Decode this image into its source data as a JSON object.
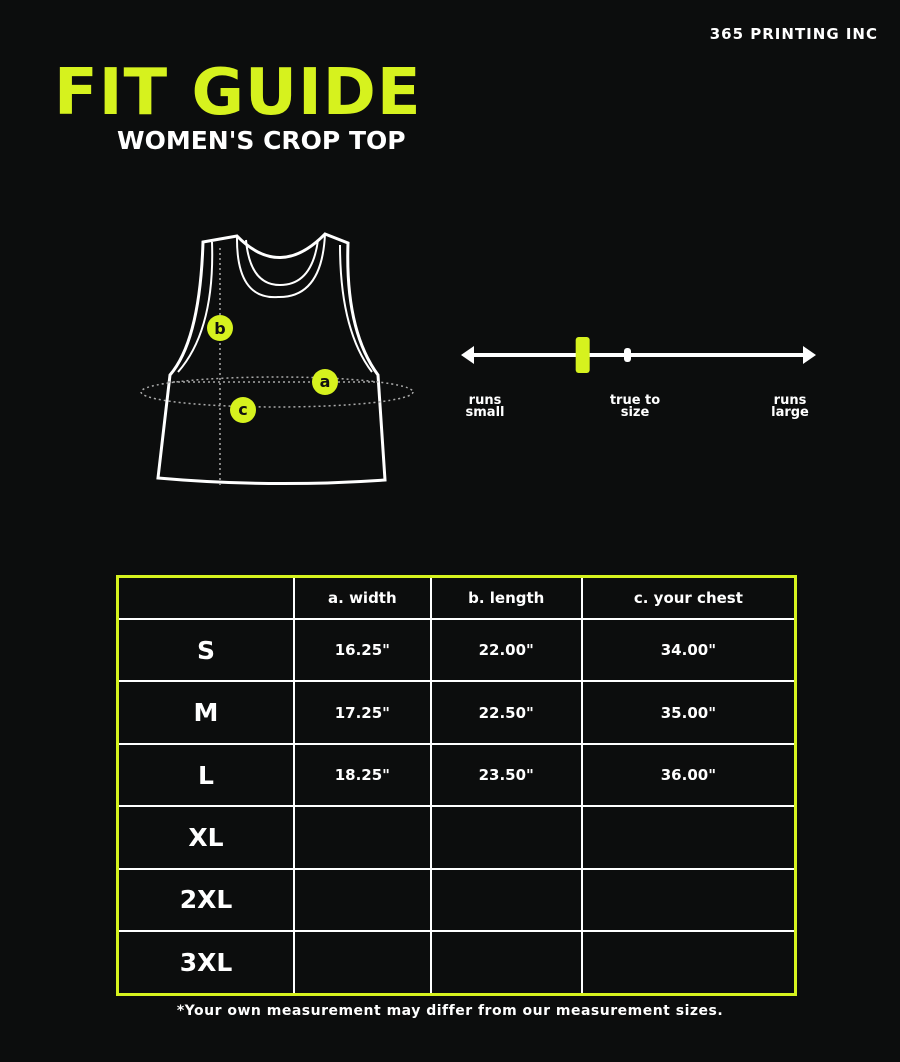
{
  "brand": "365 PRINTING INC",
  "title": "FIT GUIDE",
  "subtitle": "WOMEN'S CROP TOP",
  "colors": {
    "accent": "#d6f21e",
    "background": "#0c0d0d",
    "text": "#ffffff"
  },
  "diagram": {
    "markers": [
      "a",
      "b",
      "c"
    ]
  },
  "fit_scale": {
    "left_label": "runs small",
    "center_label": "true to size",
    "right_label": "runs large",
    "fit_position": 0.34
  },
  "table": {
    "headers": [
      "",
      "a. width",
      "b. length",
      "c. your chest"
    ],
    "rows": [
      {
        "size": "S",
        "width": "16.25\"",
        "length": "22.00\"",
        "chest": "34.00\""
      },
      {
        "size": "M",
        "width": "17.25\"",
        "length": "22.50\"",
        "chest": "35.00\""
      },
      {
        "size": "L",
        "width": "18.25\"",
        "length": "23.50\"",
        "chest": "36.00\""
      },
      {
        "size": "XL",
        "width": "",
        "length": "",
        "chest": ""
      },
      {
        "size": "2XL",
        "width": "",
        "length": "",
        "chest": ""
      },
      {
        "size": "3XL",
        "width": "",
        "length": "",
        "chest": ""
      }
    ]
  },
  "footnote": "*Your own measurement may differ from our measurement sizes."
}
